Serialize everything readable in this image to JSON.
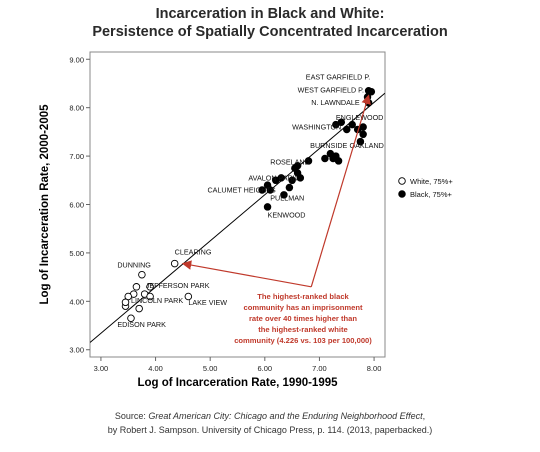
{
  "title_line1": "Incarceration in Black and White:",
  "title_line2": "Persistence of Spatially Concentrated Incarceration",
  "source": {
    "prefix": "Source: ",
    "book": "Great American City: Chicago and the Enduring Neighborhood Effect",
    "line1_suffix": ",",
    "line2": "by Robert J. Sampson. University of Chicago Press, p. 114. (2013, paperbacked.)"
  },
  "chart_data": {
    "type": "scatter",
    "xlabel": "Log of Incarceration Rate, 1990-1995",
    "ylabel": "Log of Incarceration Rate, 2000-2005",
    "xlim": [
      2.8,
      8.2
    ],
    "ylim": [
      2.85,
      9.15
    ],
    "xticks": [
      "3.00",
      "4.00",
      "5.00",
      "6.00",
      "7.00",
      "8.00"
    ],
    "yticks": [
      "3.00",
      "4.00",
      "5.00",
      "6.00",
      "7.00",
      "8.00",
      "9.00"
    ],
    "fit_line": [
      [
        2.8,
        3.15
      ],
      [
        8.2,
        8.3
      ]
    ],
    "legend": {
      "placement": "right",
      "entries": [
        "White, 75%+",
        "Black, 75%+"
      ]
    },
    "colors": {
      "white": "#ffffff",
      "black": "#000000",
      "annotation": "#c0392b",
      "fit": "#000000"
    },
    "series": [
      {
        "name": "White, 75%+",
        "points": [
          [
            4.35,
            4.78
          ],
          [
            3.75,
            4.55
          ],
          [
            3.9,
            4.3
          ],
          [
            3.65,
            4.3
          ],
          [
            3.6,
            4.15
          ],
          [
            3.8,
            4.15
          ],
          [
            3.9,
            4.1
          ],
          [
            3.5,
            4.1
          ],
          [
            3.45,
            3.9
          ],
          [
            3.7,
            3.85
          ],
          [
            4.6,
            4.1
          ],
          [
            3.55,
            3.65
          ],
          [
            3.45,
            3.98
          ]
        ]
      },
      {
        "name": "Black, 75%+",
        "points": [
          [
            7.9,
            8.35
          ],
          [
            7.95,
            8.33
          ],
          [
            7.88,
            8.22
          ],
          [
            7.9,
            8.1
          ],
          [
            7.4,
            7.7
          ],
          [
            7.6,
            7.65
          ],
          [
            7.5,
            7.55
          ],
          [
            7.3,
            7.65
          ],
          [
            7.7,
            7.55
          ],
          [
            7.8,
            7.6
          ],
          [
            7.8,
            7.45
          ],
          [
            7.75,
            7.3
          ],
          [
            7.2,
            7.05
          ],
          [
            7.3,
            7.0
          ],
          [
            7.1,
            6.95
          ],
          [
            7.25,
            6.95
          ],
          [
            6.8,
            6.9
          ],
          [
            6.6,
            6.8
          ],
          [
            6.55,
            6.75
          ],
          [
            6.6,
            6.65
          ],
          [
            6.65,
            6.55
          ],
          [
            6.3,
            6.55
          ],
          [
            6.2,
            6.5
          ],
          [
            6.05,
            6.4
          ],
          [
            5.95,
            6.3
          ],
          [
            6.1,
            6.3
          ],
          [
            6.35,
            6.2
          ],
          [
            6.5,
            6.5
          ],
          [
            6.45,
            6.35
          ],
          [
            6.05,
            5.95
          ],
          [
            7.35,
            6.9
          ]
        ]
      }
    ],
    "labels": [
      {
        "text": "EAST GARFIELD P.",
        "x": 6.75,
        "y": 8.58
      },
      {
        "text": "WEST GARFIELD P.",
        "x": 6.6,
        "y": 8.31
      },
      {
        "text": "N. LAWNDALE",
        "x": 6.85,
        "y": 8.06
      },
      {
        "text": "ENGLEWOOD",
        "x": 7.3,
        "y": 7.75
      },
      {
        "text": "WASHINGTON",
        "x": 6.5,
        "y": 7.55
      },
      {
        "text": "BURNSIDE",
        "x": 6.83,
        "y": 7.17
      },
      {
        "text": "OAKLAND",
        "x": 7.55,
        "y": 7.17
      },
      {
        "text": "ROSELAND",
        "x": 6.1,
        "y": 6.83
      },
      {
        "text": "AVALON PARK",
        "x": 5.7,
        "y": 6.5
      },
      {
        "text": "CALUMET HEIGHTS",
        "x": 4.95,
        "y": 6.25
      },
      {
        "text": "PULLMAN",
        "x": 6.1,
        "y": 6.08
      },
      {
        "text": "KENWOOD",
        "x": 6.05,
        "y": 5.73
      },
      {
        "text": "CLEARING",
        "x": 4.35,
        "y": 4.97
      },
      {
        "text": "DUNNING",
        "x": 3.3,
        "y": 4.7
      },
      {
        "text": "JEFFERSON PARK",
        "x": 3.82,
        "y": 4.28
      },
      {
        "text": "LINCOLN PARK",
        "x": 3.55,
        "y": 3.97
      },
      {
        "text": "LAKE VIEW",
        "x": 4.6,
        "y": 3.92
      },
      {
        "text": "EDISON PARK",
        "x": 3.3,
        "y": 3.47
      }
    ],
    "annotation": {
      "lines": [
        "The highest-ranked black",
        "community has an imprisonment",
        "rate over 40 times higher than",
        "the highest-ranked white",
        "community (4.226 vs. 103 per 100,000)"
      ],
      "arrow_from": [
        6.85,
        4.3
      ],
      "arrow_to_black": [
        7.9,
        8.25
      ],
      "arrow_to_white": [
        4.5,
        4.78
      ]
    }
  }
}
